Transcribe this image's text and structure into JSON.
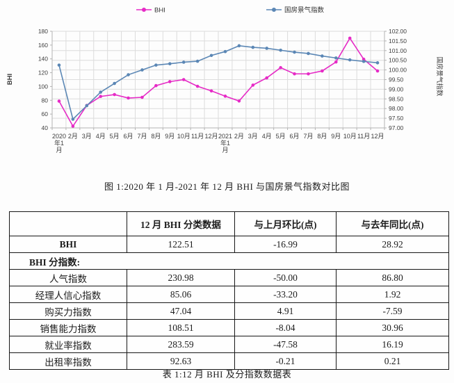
{
  "chart_data": {
    "type": "line",
    "title": "",
    "categories": [
      "2020年1月",
      "2月",
      "3月",
      "4月",
      "5月",
      "6月",
      "7月",
      "8月",
      "9月",
      "10月",
      "11月",
      "12月",
      "2021年1月",
      "2月",
      "3月",
      "4月",
      "5月",
      "6月",
      "7月",
      "8月",
      "9月",
      "10月",
      "11月",
      "12月"
    ],
    "series": [
      {
        "name": "BHI",
        "axis": "left",
        "color": "#E62BC6",
        "values": [
          78.8,
          42.5,
          72.5,
          85.6,
          88.3,
          83.3,
          84.3,
          101.2,
          107.0,
          110.0,
          100.3,
          93.59,
          86.0,
          79.0,
          102.0,
          112.5,
          127.3,
          118.3,
          118.3,
          122.5,
          135.5,
          170.0,
          139.5,
          122.51
        ]
      },
      {
        "name": "国房景气指数",
        "axis": "right",
        "color": "#5B87B5",
        "values": [
          100.25,
          97.45,
          98.15,
          98.85,
          99.3,
          99.75,
          100.0,
          100.25,
          100.32,
          100.4,
          100.45,
          100.75,
          100.95,
          101.25,
          101.17,
          101.12,
          101.02,
          100.92,
          100.85,
          100.72,
          100.62,
          100.52,
          100.44,
          100.37
        ]
      }
    ],
    "left_axis": {
      "label": "BHI",
      "min": 40,
      "max": 180,
      "step": 20
    },
    "right_axis": {
      "label": "国房景气指数",
      "min": 97,
      "max": 102,
      "step": 0.5,
      "decimals": 2
    },
    "grid": true,
    "legend_position": "top",
    "grid_color": "#dcdcdc",
    "axis_color": "#b3b3b3"
  },
  "fig_caption": "图 1:2020 年 1 月-2021 年 12 月 BHI 与国房景气指数对比图",
  "table": {
    "headers": [
      "",
      "12 月 BHI 分类数据",
      "与上月环比(点)",
      "与去年同比(点)"
    ],
    "rows": [
      {
        "label": "BHI",
        "bold": true,
        "values": [
          "122.51",
          "-16.99",
          "28.92"
        ]
      },
      {
        "label": "BHI 分指数:",
        "section": true,
        "values": []
      },
      {
        "label": "人气指数",
        "values": [
          "230.98",
          "-50.00",
          "86.80"
        ]
      },
      {
        "label": "经理人信心指数",
        "values": [
          "85.06",
          "-33.20",
          "1.92"
        ]
      },
      {
        "label": "购买力指数",
        "values": [
          "47.04",
          "4.91",
          "-7.59"
        ]
      },
      {
        "label": "销售能力指数",
        "values": [
          "108.51",
          "-8.04",
          "30.96"
        ]
      },
      {
        "label": "就业率指数",
        "values": [
          "283.59",
          "-47.58",
          "16.19"
        ]
      },
      {
        "label": "出租率指数",
        "values": [
          "92.63",
          "-0.21",
          "0.21"
        ]
      }
    ],
    "caption": "表 1:12 月 BHI 及分指数数据表"
  }
}
